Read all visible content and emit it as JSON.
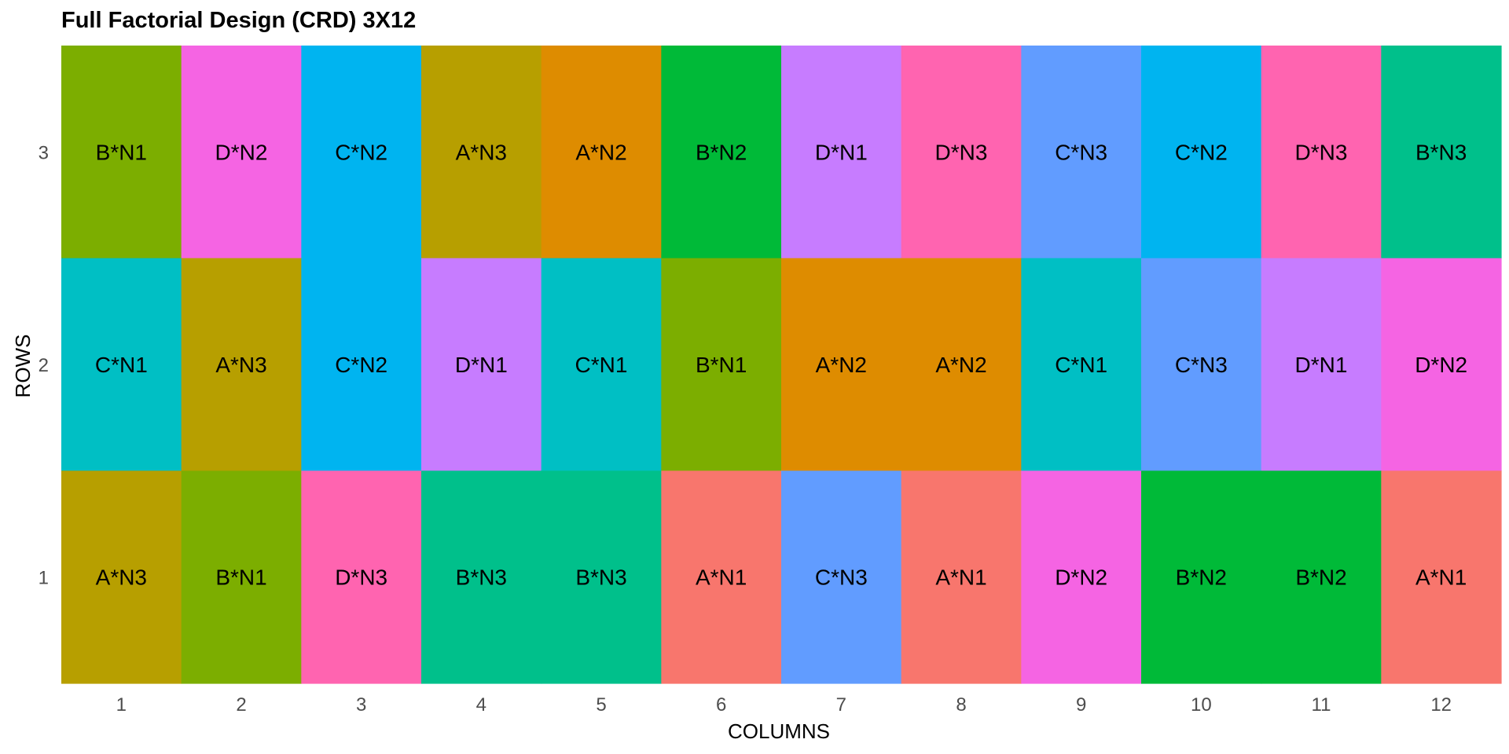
{
  "chart_data": {
    "type": "heatmap",
    "title": "Full Factorial Design (CRD) 3X12",
    "xlabel": "COLUMNS",
    "ylabel": "ROWS",
    "x_ticks": [
      "1",
      "2",
      "3",
      "4",
      "5",
      "6",
      "7",
      "8",
      "9",
      "10",
      "11",
      "12"
    ],
    "y_ticks": [
      "1",
      "2",
      "3"
    ],
    "grid": false,
    "legend": "none",
    "cells": [
      [
        "B*N1",
        "D*N2",
        "C*N2",
        "A*N3",
        "A*N2",
        "B*N2",
        "D*N1",
        "D*N3",
        "C*N3",
        "C*N2",
        "D*N3",
        "B*N3"
      ],
      [
        "C*N1",
        "A*N3",
        "C*N2",
        "D*N1",
        "C*N1",
        "B*N1",
        "A*N2",
        "A*N2",
        "C*N1",
        "C*N3",
        "D*N1",
        "D*N2"
      ],
      [
        "A*N3",
        "B*N1",
        "D*N3",
        "B*N3",
        "B*N3",
        "A*N1",
        "C*N3",
        "A*N1",
        "D*N2",
        "B*N2",
        "B*N2",
        "A*N1"
      ]
    ],
    "treatment_colors": {
      "A*N1": "#F8766D",
      "A*N2": "#DE8C00",
      "A*N3": "#B79F00",
      "B*N1": "#7CAE00",
      "B*N2": "#00BA38",
      "B*N3": "#00C08B",
      "C*N1": "#00BFC4",
      "C*N2": "#00B4F0",
      "C*N3": "#619CFF",
      "D*N1": "#C77CFF",
      "D*N2": "#F564E3",
      "D*N3": "#FF64B0"
    }
  }
}
